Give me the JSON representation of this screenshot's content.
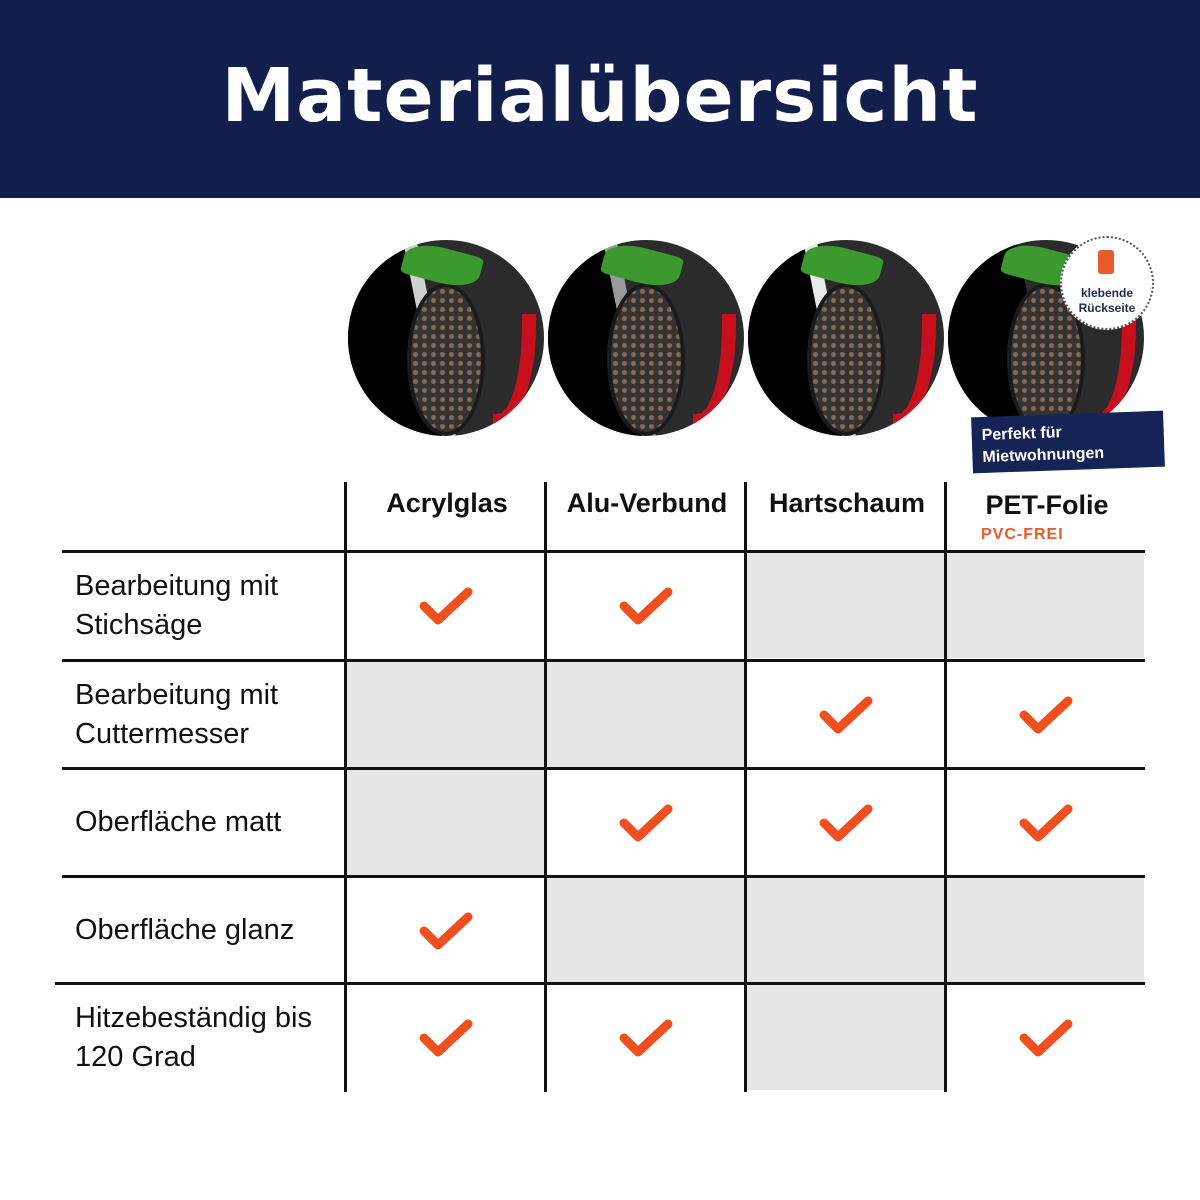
{
  "title": "Materialübersicht",
  "sticker": {
    "line1": "klebende",
    "line2": "Rückseite"
  },
  "banner": {
    "line1": "Perfekt für",
    "line2": "Mietwohnungen"
  },
  "columns": [
    {
      "label": "Acrylglas"
    },
    {
      "label": "Alu-Verbund"
    },
    {
      "label": "Hartschaum"
    },
    {
      "label": "PET-Folie",
      "sublabel": "PVC-FREI"
    }
  ],
  "rows": [
    {
      "label": "Bearbeitung mit Stichsäge",
      "values": [
        true,
        true,
        false,
        false
      ]
    },
    {
      "label": "Bearbeitung mit Cuttermesser",
      "values": [
        false,
        false,
        true,
        true
      ]
    },
    {
      "label": "Oberfläche matt",
      "values": [
        false,
        true,
        true,
        true
      ]
    },
    {
      "label": "Oberfläche glanz",
      "values": [
        true,
        false,
        false,
        false
      ]
    },
    {
      "label": "Hitzebeständig bis 120 Grad",
      "values": [
        true,
        true,
        false,
        true
      ]
    }
  ],
  "colors": {
    "header": "#121f4d",
    "check": "#f04e1e",
    "empty_cell": "#e6e6e6",
    "accent": "#e85a2a"
  }
}
